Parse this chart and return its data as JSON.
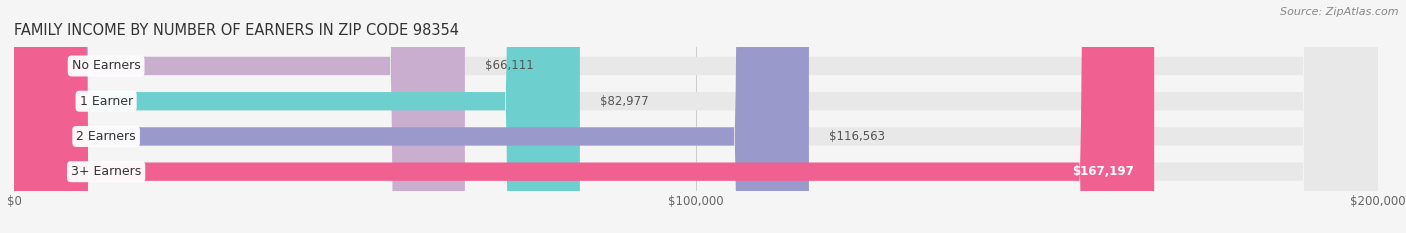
{
  "title": "FAMILY INCOME BY NUMBER OF EARNERS IN ZIP CODE 98354",
  "source": "Source: ZipAtlas.com",
  "categories": [
    "No Earners",
    "1 Earner",
    "2 Earners",
    "3+ Earners"
  ],
  "values": [
    66111,
    82977,
    116563,
    167197
  ],
  "labels": [
    "$66,111",
    "$82,977",
    "$116,563",
    "$167,197"
  ],
  "bar_colors": [
    "#c9aed0",
    "#6ecfcf",
    "#9999cc",
    "#f06090"
  ],
  "bar_bg_color": "#e8e8e8",
  "background_color": "#f5f5f5",
  "xlim": [
    0,
    200000
  ],
  "xticks": [
    0,
    100000,
    200000
  ],
  "xtick_labels": [
    "$0",
    "$100,000",
    "$200,000"
  ],
  "title_fontsize": 10.5,
  "source_fontsize": 8,
  "label_fontsize": 9,
  "bar_height": 0.52
}
